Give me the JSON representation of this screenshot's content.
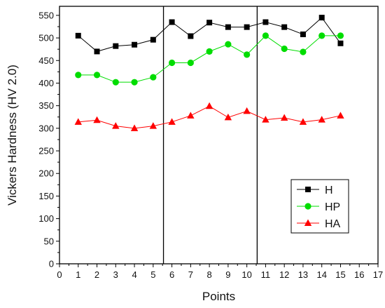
{
  "chart_data": {
    "type": "line",
    "title": "",
    "xlabel": "Points",
    "ylabel": "Vickers Hardness (HV 2.0)",
    "xlim": [
      0,
      17
    ],
    "ylim": [
      0,
      570
    ],
    "x_ticks": [
      0,
      1,
      2,
      3,
      4,
      5,
      6,
      7,
      8,
      9,
      10,
      11,
      12,
      13,
      14,
      15,
      16,
      17
    ],
    "y_ticks": [
      0,
      50,
      100,
      150,
      200,
      250,
      300,
      350,
      400,
      450,
      500,
      550
    ],
    "vertical_lines": [
      5.55,
      10.55
    ],
    "grid": false,
    "legend_position": "lower-right",
    "x": [
      1,
      2,
      3,
      4,
      5,
      6,
      7,
      8,
      9,
      10,
      11,
      12,
      13,
      14,
      15
    ],
    "series": [
      {
        "name": "H",
        "color": "#000000",
        "marker": "square",
        "values": [
          505,
          470,
          482,
          485,
          496,
          535,
          504,
          534,
          524,
          524,
          535,
          524,
          508,
          545,
          488
        ]
      },
      {
        "name": "HP",
        "color": "#00dd00",
        "marker": "circle",
        "values": [
          418,
          418,
          402,
          402,
          413,
          445,
          445,
          470,
          486,
          463,
          505,
          476,
          469,
          505,
          505
        ]
      },
      {
        "name": "HA",
        "color": "#ff0000",
        "marker": "triangle",
        "values": [
          314,
          318,
          305,
          300,
          305,
          314,
          328,
          349,
          324,
          338,
          319,
          323,
          314,
          319,
          328
        ]
      }
    ]
  }
}
